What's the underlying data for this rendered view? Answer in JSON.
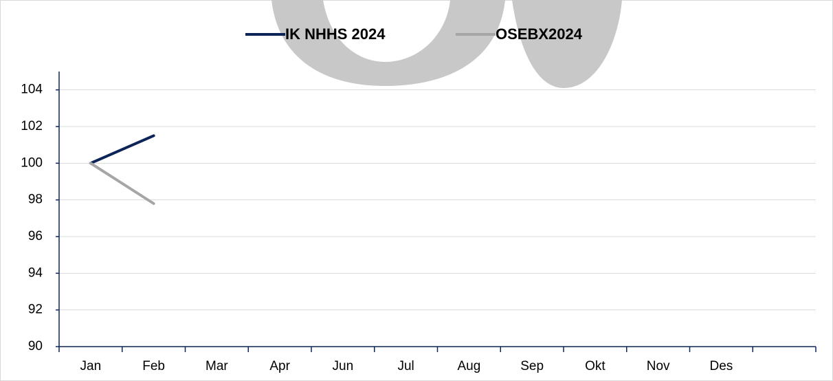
{
  "chart_data": {
    "type": "line",
    "categories": [
      "Jan",
      "Feb",
      "Mar",
      "Apr",
      "Jun",
      "Jul",
      "Aug",
      "Sep",
      "Okt",
      "Nov",
      "Des",
      null
    ],
    "series": [
      {
        "name": "IK NHHS 2024",
        "color": "#0d2458",
        "values": [
          100,
          101.5,
          null,
          null,
          null,
          null,
          null,
          null,
          null,
          null,
          null,
          null
        ]
      },
      {
        "name": "OSEBX2024",
        "color": "#a6a6a6",
        "values": [
          100,
          97.8,
          null,
          null,
          null,
          null,
          null,
          null,
          null,
          null,
          null,
          null
        ]
      }
    ],
    "ylim": [
      90,
      105
    ],
    "yticks": [
      90,
      92,
      94,
      96,
      98,
      100,
      102,
      104
    ],
    "grid": true,
    "legend": "top"
  }
}
